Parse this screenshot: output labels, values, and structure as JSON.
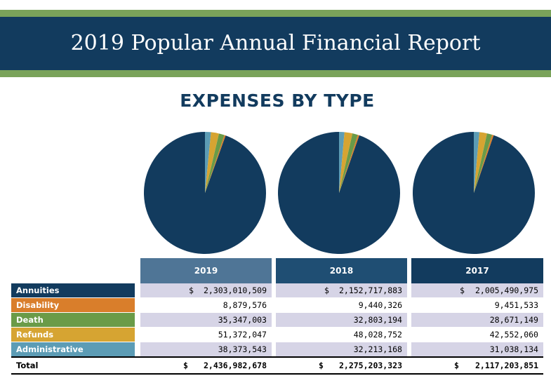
{
  "header": {
    "title": "2019 Popular Annual Financial Report"
  },
  "section_title": "EXPENSES BY TYPE",
  "colors": {
    "navy": "#123b5e",
    "green_band": "#7aa35a",
    "annuities": "#123b5e",
    "disability": "#d97e2b",
    "death": "#6a9b48",
    "refunds": "#d6a432",
    "administrative": "#5c9cb5",
    "year_2019": "#4f7596",
    "year_2018": "#1f4e73",
    "year_2017": "#123b5e",
    "row_shade": "#d6d4e6"
  },
  "table": {
    "years": [
      "2019",
      "2018",
      "2017"
    ],
    "currency_symbol": "$",
    "rows": [
      {
        "label": "Annuities",
        "values": [
          "2,303,010,509",
          "2,152,717,883",
          "2,005,490,975"
        ]
      },
      {
        "label": "Disability",
        "values": [
          "8,879,576",
          "9,440,326",
          "9,451,533"
        ]
      },
      {
        "label": "Death",
        "values": [
          "35,347,003",
          "32,803,194",
          "28,671,149"
        ]
      },
      {
        "label": "Refunds",
        "values": [
          "51,372,047",
          "48,028,752",
          "42,552,060"
        ]
      },
      {
        "label": "Administrative",
        "values": [
          "38,373,543",
          "32,213,168",
          "31,038,134"
        ]
      }
    ],
    "total": {
      "label": "Total",
      "values": [
        "2,436,982,678",
        "2,275,203,323",
        "2,117,203,851"
      ]
    }
  },
  "chart_data": {
    "type": "pie",
    "categories": [
      "Annuities",
      "Disability",
      "Death",
      "Refunds",
      "Administrative"
    ],
    "series": [
      {
        "name": "2019",
        "values": [
          2303010509,
          8879576,
          35347003,
          51372047,
          38373543
        ]
      },
      {
        "name": "2018",
        "values": [
          2152717883,
          9440326,
          32803194,
          48028752,
          32213168
        ]
      },
      {
        "name": "2017",
        "values": [
          2005490975,
          9451533,
          28671149,
          42552060,
          31038134
        ]
      }
    ]
  }
}
